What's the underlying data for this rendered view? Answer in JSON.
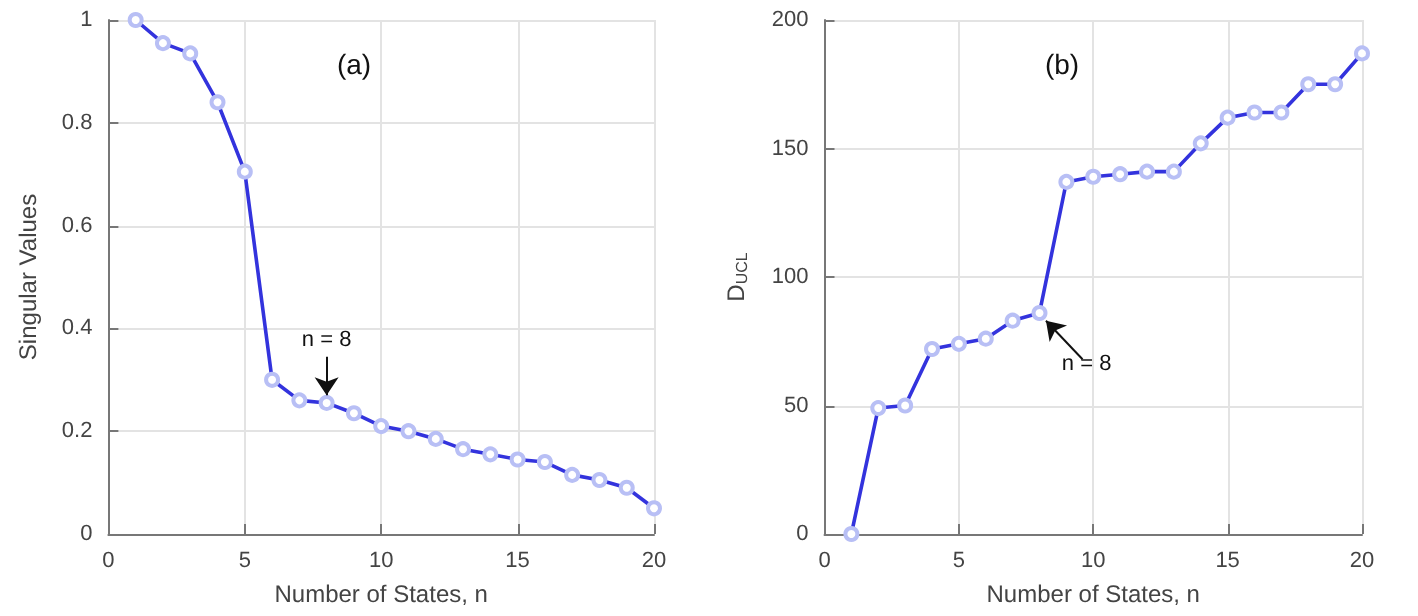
{
  "chart_data": [
    {
      "type": "line",
      "title": "(a)",
      "xlabel": "Number of States, n",
      "ylabel": "Singular Values",
      "x": [
        1,
        2,
        3,
        4,
        5,
        6,
        7,
        8,
        9,
        10,
        11,
        12,
        13,
        14,
        15,
        16,
        17,
        18,
        19,
        20
      ],
      "series": [
        {
          "color": "#3333dd",
          "values": [
            1.0,
            0.955,
            0.935,
            0.84,
            0.705,
            0.3,
            0.26,
            0.255,
            0.235,
            0.21,
            0.2,
            0.185,
            0.165,
            0.155,
            0.145,
            0.14,
            0.115,
            0.105,
            0.09,
            0.05
          ]
        }
      ],
      "xlim": [
        0,
        20
      ],
      "xticks": [
        0,
        5,
        10,
        15,
        20
      ],
      "ylim": [
        0,
        1
      ],
      "yticks": [
        0,
        0.2,
        0.4,
        0.6,
        0.8,
        1
      ],
      "grid": true,
      "marker": "circle",
      "line_style": "solid",
      "annotations": [
        {
          "text": "n = 8",
          "x": 8,
          "y": 0.255
        }
      ]
    },
    {
      "type": "line",
      "title": "(b)",
      "xlabel": "Number of States, n",
      "ylabel": "D$_{UCL}$",
      "x": [
        1,
        2,
        3,
        4,
        5,
        6,
        7,
        8,
        9,
        10,
        11,
        12,
        13,
        14,
        15,
        16,
        17,
        18,
        19,
        20
      ],
      "series": [
        {
          "color": "#3333dd",
          "values": [
            0,
            49,
            50,
            72,
            74,
            76,
            83,
            86,
            137,
            139,
            140,
            141,
            141,
            152,
            162,
            164,
            164,
            175,
            175,
            187
          ]
        }
      ],
      "xlim": [
        0,
        20
      ],
      "xticks": [
        0,
        5,
        10,
        15,
        20
      ],
      "ylim": [
        0,
        200
      ],
      "yticks": [
        0,
        50,
        100,
        150,
        200
      ],
      "grid": true,
      "marker": "circle",
      "line_style": "solid",
      "annotations": [
        {
          "text": "n = 8",
          "x": 8,
          "y": 86
        }
      ]
    }
  ]
}
